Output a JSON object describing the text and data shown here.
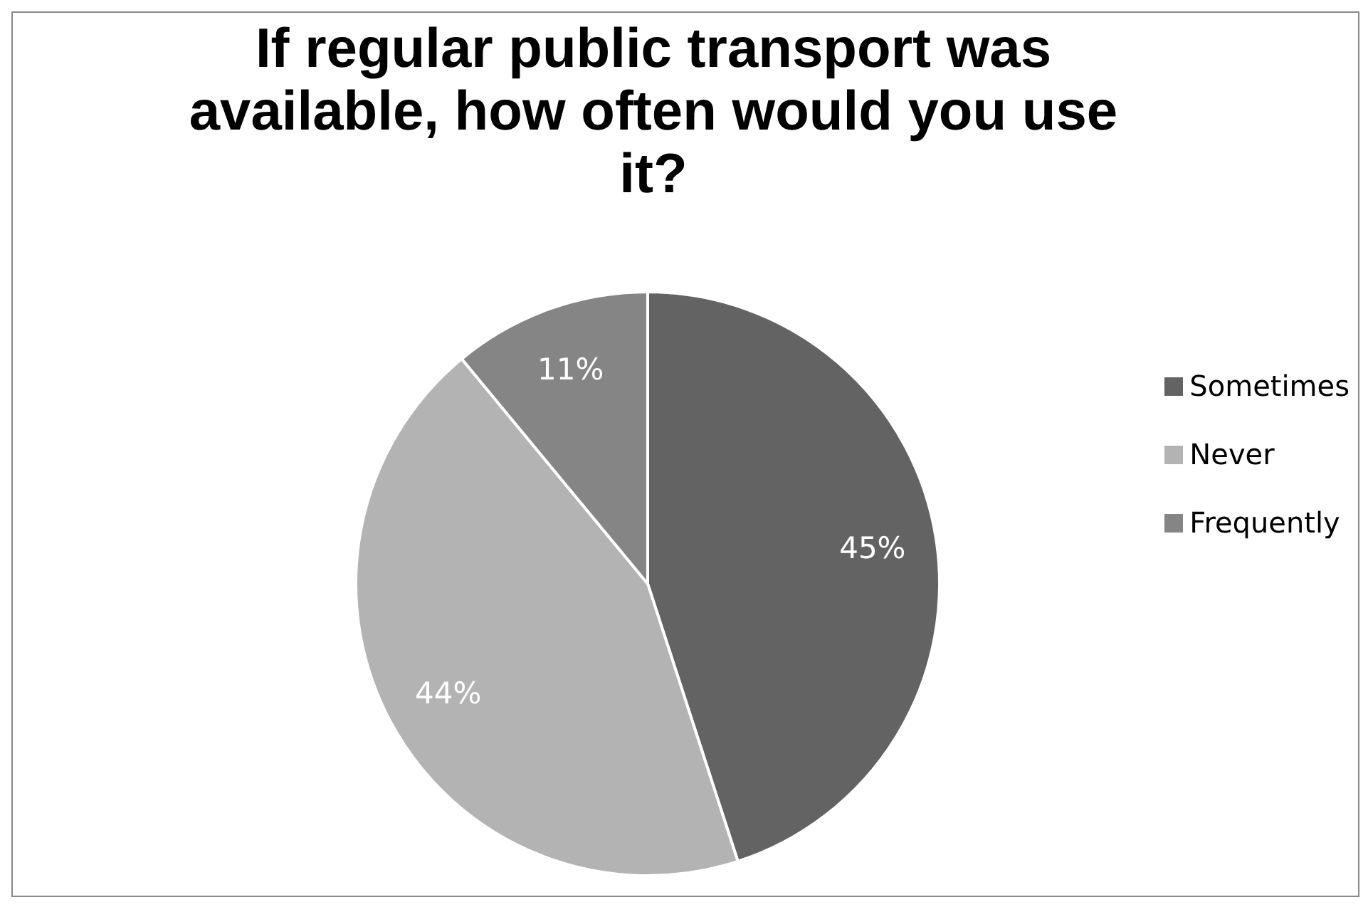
{
  "chart_data": {
    "type": "pie",
    "title": "If regular public transport was available, how often would you use it?",
    "categories": [
      "Sometimes",
      "Never",
      "Frequently"
    ],
    "values": [
      45,
      44,
      11
    ],
    "value_labels": [
      "45%",
      "44%",
      "11%"
    ],
    "colors": [
      "#636363",
      "#b3b3b3",
      "#858585"
    ],
    "legend": "right"
  }
}
